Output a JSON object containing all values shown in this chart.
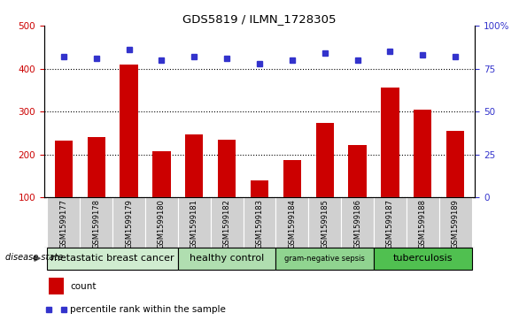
{
  "title": "GDS5819 / ILMN_1728305",
  "samples": [
    "GSM1599177",
    "GSM1599178",
    "GSM1599179",
    "GSM1599180",
    "GSM1599181",
    "GSM1599182",
    "GSM1599183",
    "GSM1599184",
    "GSM1599185",
    "GSM1599186",
    "GSM1599187",
    "GSM1599188",
    "GSM1599189"
  ],
  "counts": [
    232,
    240,
    410,
    208,
    246,
    235,
    140,
    187,
    273,
    222,
    355,
    305,
    255
  ],
  "percentiles": [
    82,
    81,
    86,
    80,
    82,
    81,
    78,
    80,
    84,
    80,
    85,
    83,
    82
  ],
  "ylim_left": [
    100,
    500
  ],
  "ylim_right": [
    0,
    100
  ],
  "yticks_left": [
    100,
    200,
    300,
    400,
    500
  ],
  "yticks_right": [
    0,
    25,
    50,
    75,
    100
  ],
  "ytick_right_labels": [
    "0",
    "25",
    "50",
    "75",
    "100%"
  ],
  "bar_color": "#cc0000",
  "dot_color": "#3333cc",
  "groups": [
    {
      "label": "metastatic breast cancer",
      "start": 0,
      "end": 3,
      "color": "#d0ecd0"
    },
    {
      "label": "healthy control",
      "start": 4,
      "end": 6,
      "color": "#b0deb0"
    },
    {
      "label": "gram-negative sepsis",
      "start": 7,
      "end": 9,
      "color": "#90d490"
    },
    {
      "label": "tuberculosis",
      "start": 10,
      "end": 12,
      "color": "#50c050"
    }
  ],
  "disease_state_label": "disease state",
  "legend_count_label": "count",
  "legend_percentile_label": "percentile rank within the sample",
  "tick_bg_color": "#d0d0d0",
  "sample_label_fontsize": 6,
  "group_label_fontsize": 8,
  "gram_fontsize": 6
}
